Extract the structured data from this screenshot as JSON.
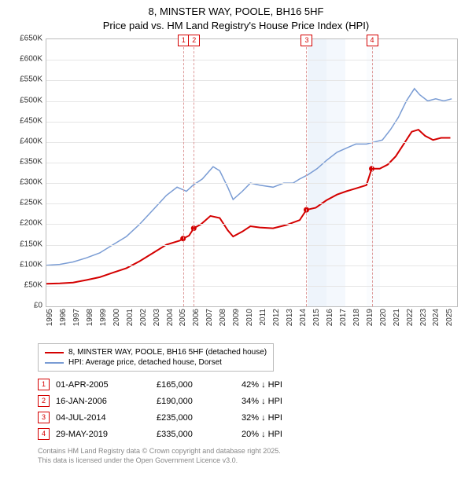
{
  "title": {
    "line1": "8, MINSTER WAY, POOLE, BH16 5HF",
    "line2": "Price paid vs. HM Land Registry's House Price Index (HPI)"
  },
  "chart": {
    "type": "line",
    "background_color": "#ffffff",
    "grid_color": "#e6e6e6",
    "axis_color": "#bbbbbb",
    "x_range": [
      1995,
      2025.8
    ],
    "y_range": [
      0,
      650000
    ],
    "ytick_step": 50000,
    "yticks": [
      "£0",
      "£50K",
      "£100K",
      "£150K",
      "£200K",
      "£250K",
      "£300K",
      "£350K",
      "£400K",
      "£450K",
      "£500K",
      "£550K",
      "£600K",
      "£650K"
    ],
    "xticks": [
      1995,
      1996,
      1997,
      1998,
      1999,
      2000,
      2001,
      2002,
      2003,
      2004,
      2005,
      2006,
      2007,
      2008,
      2009,
      2010,
      2011,
      2012,
      2013,
      2014,
      2015,
      2016,
      2017,
      2018,
      2019,
      2020,
      2021,
      2022,
      2023,
      2024,
      2025
    ],
    "shade_bands": [
      {
        "from": 2014.6,
        "to": 2016.0,
        "color": "#eef4fb"
      },
      {
        "from": 2016.0,
        "to": 2017.4,
        "color": "#f4f8fd"
      },
      {
        "from": 2019.0,
        "to": 2020.0,
        "color": "#fafcfe"
      }
    ],
    "series": [
      {
        "name": "hpi",
        "label": "HPI: Average price, detached house, Dorset",
        "color": "#7a9cd4",
        "width": 1.5,
        "points": [
          [
            1995.0,
            100000
          ],
          [
            1996.0,
            102000
          ],
          [
            1997.0,
            108000
          ],
          [
            1998.0,
            118000
          ],
          [
            1999.0,
            130000
          ],
          [
            2000.0,
            150000
          ],
          [
            2001.0,
            170000
          ],
          [
            2002.0,
            200000
          ],
          [
            2003.0,
            235000
          ],
          [
            2004.0,
            270000
          ],
          [
            2004.8,
            290000
          ],
          [
            2005.5,
            280000
          ],
          [
            2006.0,
            295000
          ],
          [
            2006.7,
            310000
          ],
          [
            2007.5,
            340000
          ],
          [
            2008.0,
            330000
          ],
          [
            2008.6,
            290000
          ],
          [
            2009.0,
            260000
          ],
          [
            2009.7,
            280000
          ],
          [
            2010.3,
            300000
          ],
          [
            2011.0,
            295000
          ],
          [
            2012.0,
            290000
          ],
          [
            2012.8,
            300000
          ],
          [
            2013.5,
            300000
          ],
          [
            2014.0,
            310000
          ],
          [
            2014.6,
            320000
          ],
          [
            2015.3,
            335000
          ],
          [
            2016.0,
            355000
          ],
          [
            2016.8,
            375000
          ],
          [
            2017.5,
            385000
          ],
          [
            2018.2,
            395000
          ],
          [
            2019.0,
            395000
          ],
          [
            2019.6,
            400000
          ],
          [
            2020.2,
            405000
          ],
          [
            2020.8,
            430000
          ],
          [
            2021.4,
            460000
          ],
          [
            2022.0,
            500000
          ],
          [
            2022.6,
            530000
          ],
          [
            2023.0,
            515000
          ],
          [
            2023.6,
            500000
          ],
          [
            2024.2,
            505000
          ],
          [
            2024.8,
            500000
          ],
          [
            2025.4,
            505000
          ]
        ]
      },
      {
        "name": "price_paid",
        "label": "8, MINSTER WAY, POOLE, BH16 5HF (detached house)",
        "color": "#d40000",
        "width": 2,
        "points": [
          [
            1995.0,
            55000
          ],
          [
            1996.0,
            56000
          ],
          [
            1997.0,
            58000
          ],
          [
            1998.0,
            64000
          ],
          [
            1999.0,
            71000
          ],
          [
            2000.0,
            82000
          ],
          [
            2001.0,
            93000
          ],
          [
            2002.0,
            110000
          ],
          [
            2003.0,
            130000
          ],
          [
            2004.0,
            150000
          ],
          [
            2005.0,
            160000
          ],
          [
            2005.25,
            165000
          ],
          [
            2005.7,
            172000
          ],
          [
            2006.05,
            190000
          ],
          [
            2006.6,
            200000
          ],
          [
            2007.3,
            220000
          ],
          [
            2008.0,
            215000
          ],
          [
            2008.6,
            185000
          ],
          [
            2009.0,
            170000
          ],
          [
            2009.7,
            182000
          ],
          [
            2010.3,
            195000
          ],
          [
            2011.0,
            192000
          ],
          [
            2012.0,
            190000
          ],
          [
            2013.0,
            198000
          ],
          [
            2014.0,
            210000
          ],
          [
            2014.5,
            235000
          ],
          [
            2015.2,
            240000
          ],
          [
            2016.0,
            258000
          ],
          [
            2016.8,
            272000
          ],
          [
            2017.5,
            280000
          ],
          [
            2018.2,
            287000
          ],
          [
            2019.0,
            295000
          ],
          [
            2019.4,
            335000
          ],
          [
            2020.0,
            335000
          ],
          [
            2020.6,
            345000
          ],
          [
            2021.2,
            365000
          ],
          [
            2021.8,
            395000
          ],
          [
            2022.4,
            425000
          ],
          [
            2022.9,
            430000
          ],
          [
            2023.4,
            415000
          ],
          [
            2024.0,
            405000
          ],
          [
            2024.6,
            410000
          ],
          [
            2025.3,
            410000
          ]
        ]
      }
    ],
    "sale_markers": [
      {
        "idx": "1",
        "x": 2005.25,
        "y": 165000,
        "color": "#d40000"
      },
      {
        "idx": "2",
        "x": 2006.05,
        "y": 190000,
        "color": "#d40000"
      },
      {
        "idx": "3",
        "x": 2014.5,
        "y": 235000,
        "color": "#d40000"
      },
      {
        "idx": "4",
        "x": 2019.4,
        "y": 335000,
        "color": "#d40000"
      }
    ],
    "marker_line_color": "#d99",
    "tick_fontsize": 10
  },
  "legend": {
    "items": [
      {
        "color": "#d40000",
        "label": "8, MINSTER WAY, POOLE, BH16 5HF (detached house)"
      },
      {
        "color": "#7a9cd4",
        "label": "HPI: Average price, detached house, Dorset"
      }
    ]
  },
  "sales": [
    {
      "idx": "1",
      "date": "01-APR-2005",
      "price": "£165,000",
      "vs": "42% ↓ HPI",
      "color": "#d40000"
    },
    {
      "idx": "2",
      "date": "16-JAN-2006",
      "price": "£190,000",
      "vs": "34% ↓ HPI",
      "color": "#d40000"
    },
    {
      "idx": "3",
      "date": "04-JUL-2014",
      "price": "£235,000",
      "vs": "32% ↓ HPI",
      "color": "#d40000"
    },
    {
      "idx": "4",
      "date": "29-MAY-2019",
      "price": "£335,000",
      "vs": "20% ↓ HPI",
      "color": "#d40000"
    }
  ],
  "footer": {
    "line1": "Contains HM Land Registry data © Crown copyright and database right 2025.",
    "line2": "This data is licensed under the Open Government Licence v3.0."
  }
}
